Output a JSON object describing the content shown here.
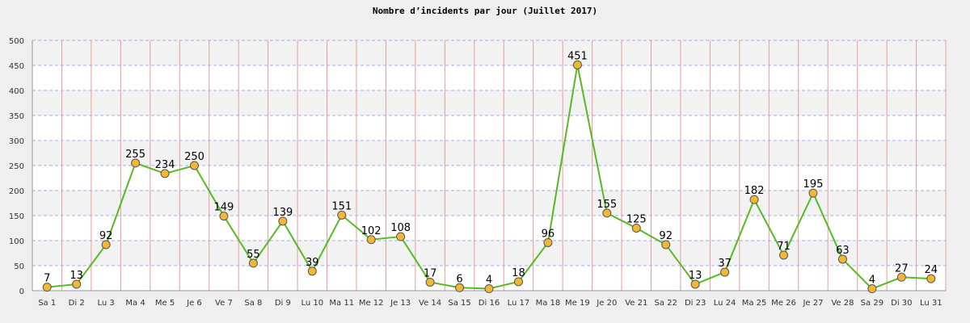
{
  "chart_data": {
    "type": "line",
    "title": "Nombre d’incidents par jour (Juillet 2017)",
    "xlabel": "",
    "ylabel": "",
    "categories": [
      "Sa 1",
      "Di 2",
      "Lu 3",
      "Ma 4",
      "Me 5",
      "Je 6",
      "Ve 7",
      "Sa 8",
      "Di 9",
      "Lu 10",
      "Ma 11",
      "Me 12",
      "Je 13",
      "Ve 14",
      "Sa 15",
      "Di 16",
      "Lu 17",
      "Ma 18",
      "Me 19",
      "Je 20",
      "Ve 21",
      "Sa 22",
      "Di 23",
      "Lu 24",
      "Ma 25",
      "Me 26",
      "Je 27",
      "Ve 28",
      "Sa 29",
      "Di 30",
      "Lu 31"
    ],
    "series": [
      {
        "values": [
          7,
          13,
          92,
          255,
          234,
          250,
          149,
          55,
          139,
          39,
          151,
          102,
          108,
          17,
          6,
          4,
          18,
          96,
          451,
          155,
          125,
          92,
          13,
          37,
          182,
          71,
          195,
          63,
          4,
          27,
          24
        ]
      }
    ],
    "ylim": [
      0,
      500
    ],
    "yticks": [
      0,
      50,
      100,
      150,
      200,
      250,
      300,
      350,
      400,
      450,
      500
    ],
    "grid": true,
    "legend": "none",
    "colors": {
      "line": "#55bb22",
      "marker_fill": "#f2b733",
      "marker_stroke": "#555555",
      "hgrid": "#aaaaee",
      "vgrid": "#ee9999",
      "band_light": "#ffffff",
      "band_dark": "#f2f2f2"
    }
  }
}
